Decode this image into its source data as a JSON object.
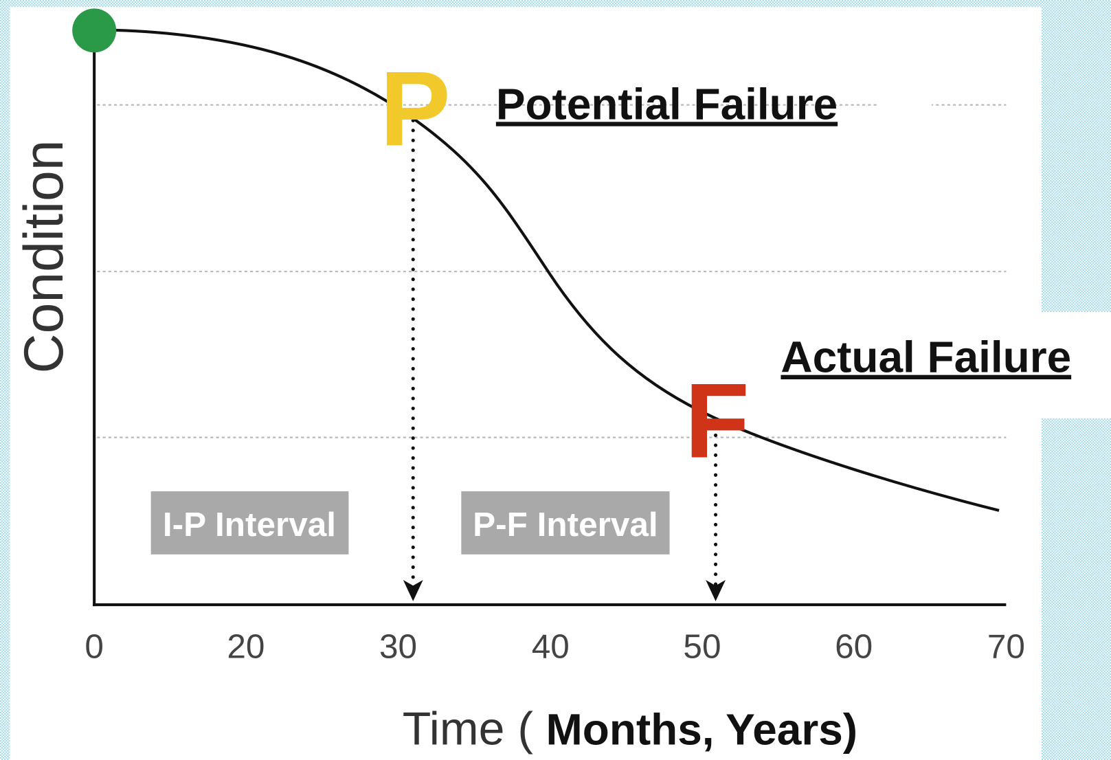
{
  "y_axis_label": "Condition",
  "x_axis_label": {
    "prefix": "Time (",
    "emphasis": "Months, Years)"
  },
  "x_ticks": [
    "0",
    "20",
    "30",
    "40",
    "50",
    "60",
    "70"
  ],
  "markers": [
    {
      "letter": "P",
      "label": "Potential Failure"
    },
    {
      "letter": "F",
      "label": "Actual Failure"
    }
  ],
  "intervals": [
    "I-P Interval",
    "P-F Interval"
  ]
}
